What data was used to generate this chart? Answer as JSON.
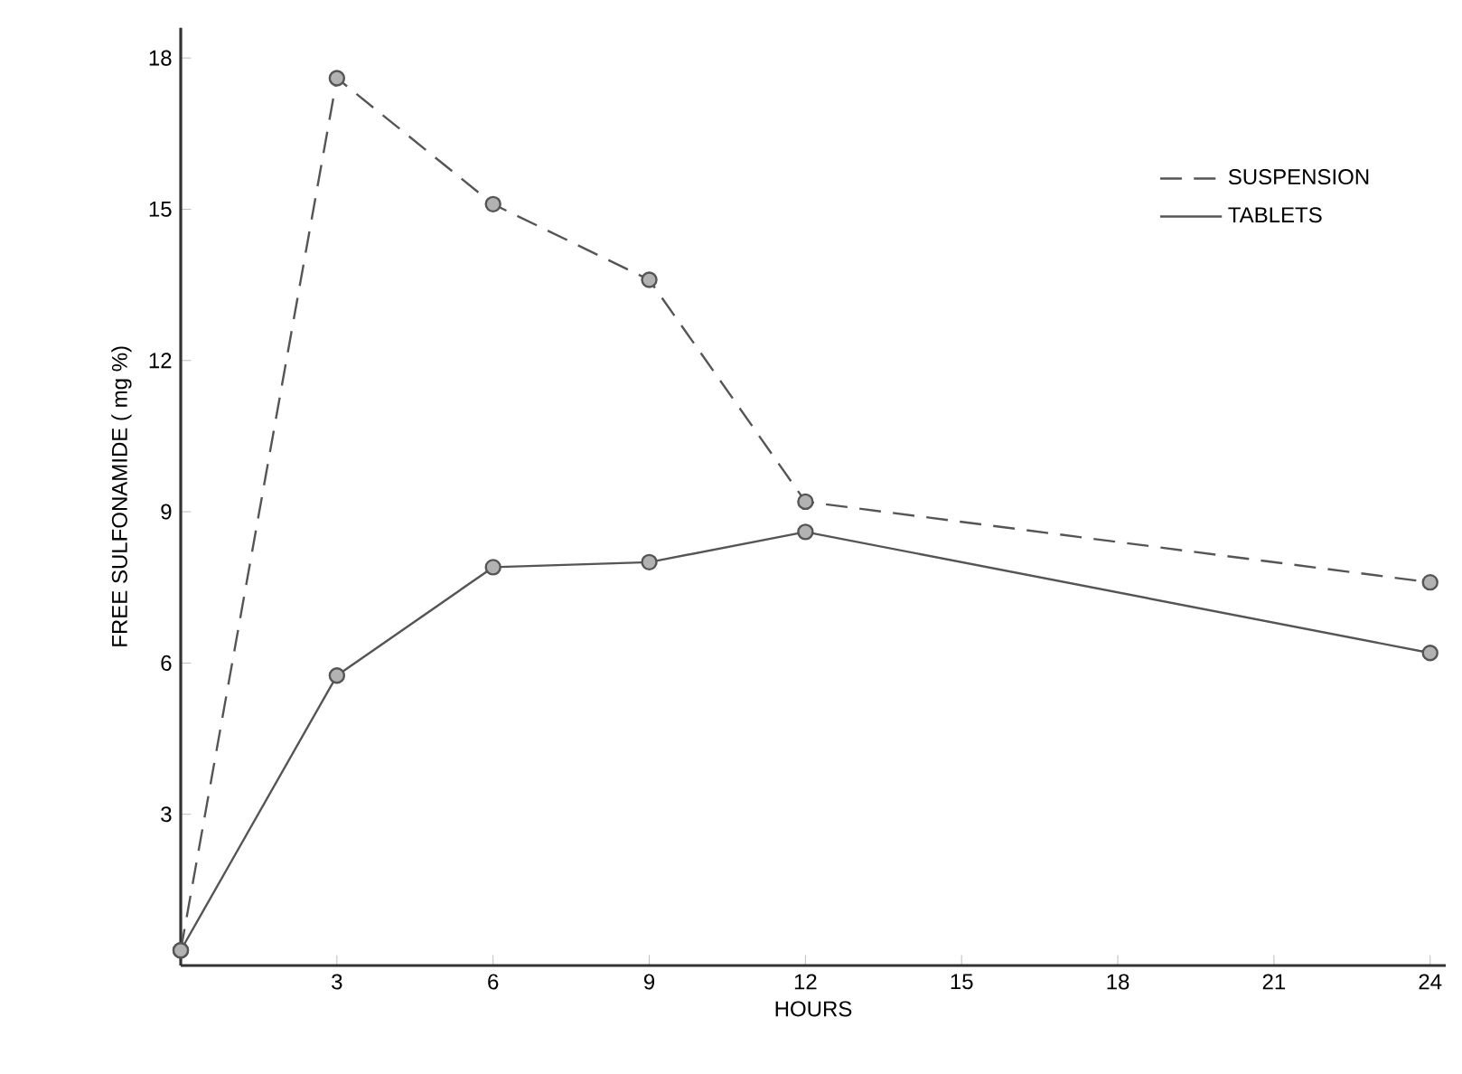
{
  "chart_data": {
    "type": "line",
    "xlabel": "HOURS",
    "ylabel": "FREE SULFONAMIDE ( mg %)",
    "xlim": [
      0,
      24.3
    ],
    "ylim": [
      0,
      18.6
    ],
    "xticks": [
      3,
      6,
      9,
      12,
      15,
      18,
      21,
      24
    ],
    "yticks": [
      3,
      6,
      9,
      12,
      15,
      18
    ],
    "legend": "top right",
    "marker": "circle",
    "series": [
      {
        "name": "SUSPENSION",
        "color": "#555555",
        "line_style": "dashed",
        "x": [
          0,
          3,
          6,
          9,
          12,
          24
        ],
        "values": [
          0.3,
          17.6,
          15.1,
          13.6,
          9.2,
          7.6
        ]
      },
      {
        "name": "TABLETS",
        "color": "#555555",
        "line_style": "solid",
        "x": [
          0,
          3,
          6,
          9,
          12,
          24
        ],
        "values": [
          0.3,
          5.75,
          7.9,
          8.0,
          8.6,
          6.2
        ]
      }
    ]
  }
}
